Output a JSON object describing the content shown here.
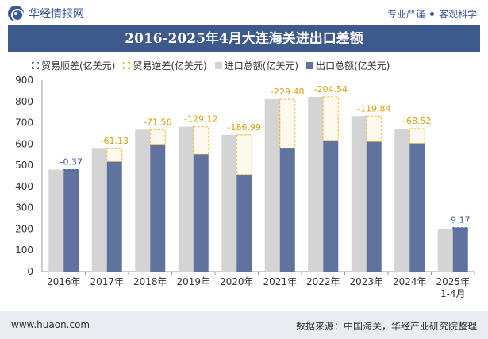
{
  "header": {
    "brand": "华经情报网",
    "tag1": "专业严谨",
    "tag2": "客观科学"
  },
  "title": "2016-2025年4月大连海关进出口差额",
  "legend": {
    "surplus": "贸易顺差(亿美元)",
    "deficit": "贸易逆差(亿美元)",
    "import": "进口总额(亿美元)",
    "export": "出口总额(亿美元)"
  },
  "footer": {
    "url": "www.huaon.com",
    "source": "数据来源：中国海关，华经产业研究院整理"
  },
  "colors": {
    "title_bg": "#3e5a8c",
    "import": "#d4d4d4",
    "export": "#5f739e",
    "deficit_border": "#f0b429",
    "deficit_label": "#d4a017",
    "surplus_border": "#4a6aa0",
    "surplus_label": "#3b5998"
  },
  "chart_data": {
    "type": "bar",
    "categories": [
      "2016年",
      "2017年",
      "2018年",
      "2019年",
      "2020年",
      "2021年",
      "2022年",
      "2023年",
      "2024年",
      "2025年\n1-4月"
    ],
    "series": [
      {
        "name": "进口总额(亿美元)",
        "values": [
          480,
          578,
          667,
          681,
          643,
          810,
          822,
          731,
          672,
          198
        ]
      },
      {
        "name": "出口总额(亿美元)",
        "values": [
          480,
          517,
          595,
          552,
          456,
          580,
          617,
          611,
          603,
          207
        ]
      }
    ],
    "balance_labels": [
      "-0.37",
      "-61.13",
      "-71.56",
      "-129.12",
      "-186.99",
      "-229.48",
      "-204.54",
      "-119.84",
      "-68.52",
      "9.17"
    ],
    "ylim": [
      0,
      900
    ],
    "yticks": [
      0,
      100,
      200,
      300,
      400,
      500,
      600,
      700,
      800,
      900
    ],
    "grid": false,
    "legend_position": "top"
  }
}
